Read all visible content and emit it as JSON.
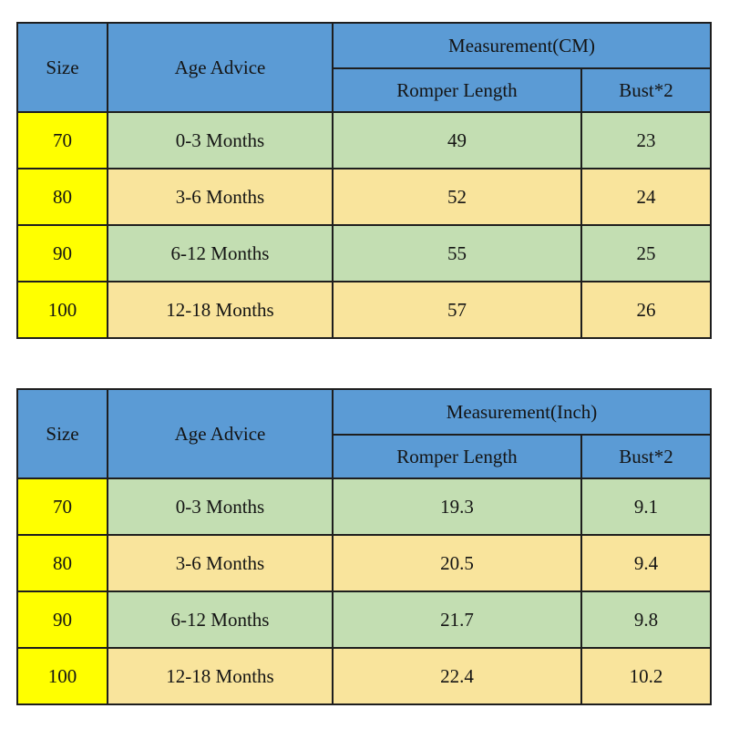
{
  "colors": {
    "header_blue": "#5b9bd5",
    "size_yellow": "#ffff00",
    "row_green": "#c3deb2",
    "row_tan": "#f9e49c",
    "border": "#1e1e1e",
    "text": "#141414",
    "page_background": "#ffffff"
  },
  "tables": [
    {
      "name": "size-chart-cm",
      "headers": {
        "size": "Size",
        "age": "Age Advice",
        "measurement_group": "Measurement(CM)",
        "romper_length": "Romper Length",
        "bust": "Bust*2"
      },
      "rows": [
        {
          "size": "70",
          "age": "0-3 Months",
          "romper_length": "49",
          "bust": "23"
        },
        {
          "size": "80",
          "age": "3-6 Months",
          "romper_length": "52",
          "bust": "24"
        },
        {
          "size": "90",
          "age": "6-12 Months",
          "romper_length": "55",
          "bust": "25"
        },
        {
          "size": "100",
          "age": "12-18 Months",
          "romper_length": "57",
          "bust": "26"
        }
      ]
    },
    {
      "name": "size-chart-inch",
      "headers": {
        "size": "Size",
        "age": "Age Advice",
        "measurement_group": "Measurement(Inch)",
        "romper_length": "Romper Length",
        "bust": "Bust*2"
      },
      "rows": [
        {
          "size": "70",
          "age": "0-3 Months",
          "romper_length": "19.3",
          "bust": "9.1"
        },
        {
          "size": "80",
          "age": "3-6 Months",
          "romper_length": "20.5",
          "bust": "9.4"
        },
        {
          "size": "90",
          "age": "6-12 Months",
          "romper_length": "21.7",
          "bust": "9.8"
        },
        {
          "size": "100",
          "age": "12-18 Months",
          "romper_length": "22.4",
          "bust": "10.2"
        }
      ]
    }
  ]
}
